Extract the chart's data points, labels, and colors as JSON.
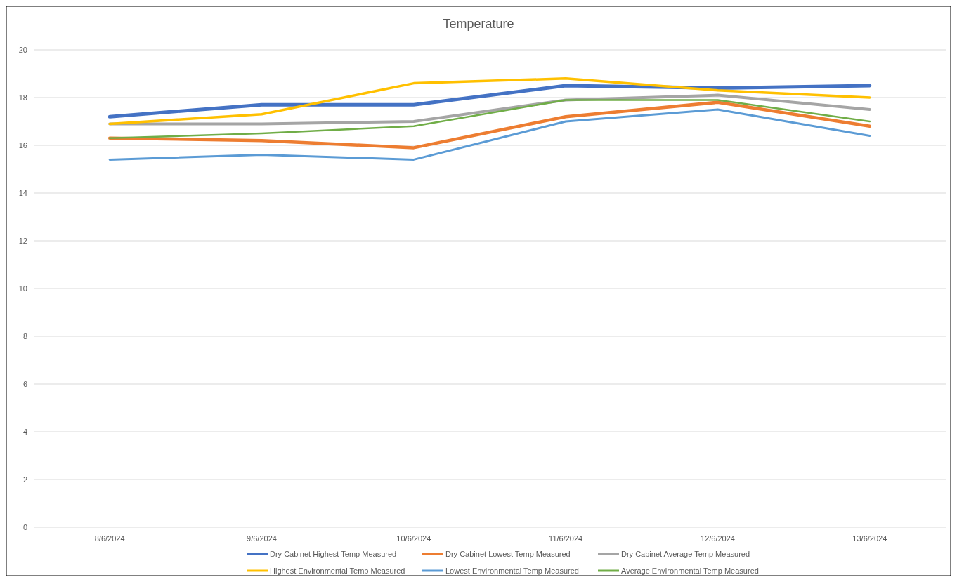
{
  "chart_data": {
    "type": "line",
    "title": "Temperature",
    "categories": [
      "8/6/2024",
      "9/6/2024",
      "10/6/2024",
      "11/6/2024",
      "12/6/2024",
      "13/6/2024"
    ],
    "ylim": [
      0,
      20
    ],
    "yticks": [
      0,
      2,
      4,
      6,
      8,
      10,
      12,
      14,
      16,
      18,
      20
    ],
    "grid": "y",
    "legend": "bottom",
    "marker": "none",
    "line_style": "solid",
    "series": [
      {
        "name": "Dry Cabinet Highest Temp Measured",
        "color": "#4472c4",
        "values": [
          17.2,
          17.7,
          17.7,
          18.5,
          18.4,
          18.5
        ]
      },
      {
        "name": "Dry Cabinet Lowest Temp Measured",
        "color": "#ed7d31",
        "values": [
          16.3,
          16.2,
          15.9,
          17.2,
          17.8,
          16.8
        ]
      },
      {
        "name": "Dry Cabinet Average Temp Measured",
        "color": "#a5a5a5",
        "values": [
          16.9,
          16.9,
          17.0,
          17.9,
          18.1,
          17.5
        ]
      },
      {
        "name": "Highest Environmental Temp Measured",
        "color": "#ffc000",
        "values": [
          16.9,
          17.3,
          18.6,
          18.8,
          18.3,
          18.0
        ]
      },
      {
        "name": "Lowest Environmental Temp Measured",
        "color": "#5b9bd5",
        "values": [
          15.4,
          15.6,
          15.4,
          17.0,
          17.5,
          16.4
        ]
      },
      {
        "name": "Average Environmental Temp Measured",
        "color": "#70ad47",
        "values": [
          16.3,
          16.5,
          16.8,
          17.9,
          17.9,
          17.0
        ]
      }
    ]
  }
}
